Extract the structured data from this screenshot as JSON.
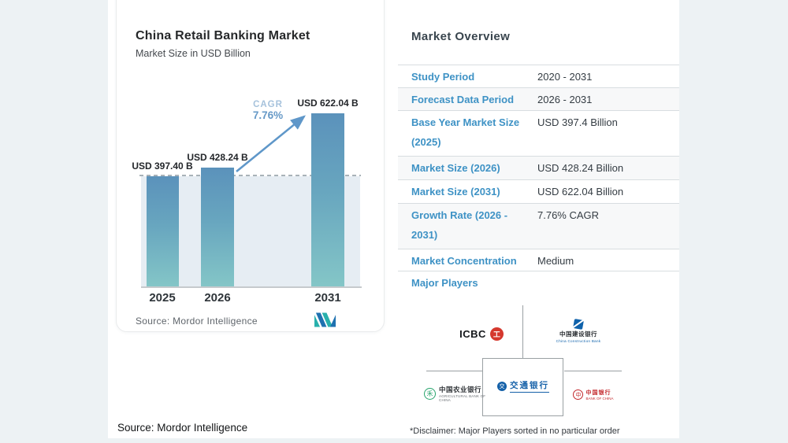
{
  "chart_card": {
    "title": "China Retail Banking Market",
    "subtitle": "Market Size in USD Billion",
    "source": "Source: Mordor Intelligence",
    "cagr_label": "CAGR",
    "cagr_value": "7.76%"
  },
  "chart_data": {
    "type": "bar",
    "title": "China Retail Banking Market",
    "subtitle": "Market Size in USD Billion",
    "unit": "USD Billion",
    "categories": [
      "2025",
      "2026",
      "2031"
    ],
    "values": [
      397.4,
      428.24,
      622.04
    ],
    "bar_labels": [
      "USD 397.40 B",
      "USD 428.24 B",
      "USD 622.04 B"
    ],
    "cagr": {
      "label": "CAGR",
      "value": "7.76%",
      "period": "2026 - 2031"
    },
    "baseline_value": 397.4,
    "ylim": [
      0,
      660
    ],
    "grid": false,
    "legend": "none",
    "bar_gradient": [
      "#5b92bb",
      "#84c6c7"
    ],
    "between_bars_fill": "#e6edf3",
    "dashed_reference_line": "at 2025 value level"
  },
  "overview": {
    "heading": "Market Overview",
    "label_color": "#3e92c5",
    "rows": [
      {
        "label": "Study Period",
        "value": "2020 - 2031"
      },
      {
        "label": "Forecast Data Period",
        "value": "2026 - 2031"
      },
      {
        "label": "Base Year Market Size (2025)",
        "value": "USD 397.4 Billion"
      },
      {
        "label": "Market Size (2026)",
        "value": "USD 428.24 Billion"
      },
      {
        "label": "Market Size (2031)",
        "value": "USD 622.04 Billion"
      },
      {
        "label": "Growth Rate (2026 - 2031)",
        "value": "7.76% CAGR"
      },
      {
        "label": "Market Concentration",
        "value": "Medium"
      }
    ],
    "major_players_label": "Major Players"
  },
  "major_players": {
    "disclaimer": "*Disclaimer: Major Players sorted in no particular order",
    "players": [
      {
        "name": "ICBC",
        "icon": "icbc-logo",
        "icon_char": "工",
        "color": "#d5382e"
      },
      {
        "name": "中国建设银行",
        "caption": "China Construction Bank",
        "icon": "ccb-logo",
        "color": "#0f62ab"
      },
      {
        "name": "中国农业银行",
        "caption": "AGRICULTURAL BANK OF CHINA",
        "icon": "abc-logo",
        "icon_char": "禾",
        "color": "#27a46c"
      },
      {
        "name": "交通银行",
        "icon": "bocom-logo",
        "icon_char": "交",
        "color": "#1460a8"
      },
      {
        "name": "中国银行",
        "caption": "BANK OF CHINA",
        "icon": "boc-logo",
        "icon_char": "中",
        "color": "#c3272b"
      }
    ]
  },
  "footer": {
    "source": "Source: Mordor Intelligence"
  },
  "colors": {
    "page_background": "#edf2f4",
    "content_background": "#ffffff",
    "accent_blue": "#3e92c5",
    "bar_top": "#5b92bb",
    "bar_bottom": "#84c6c7",
    "arrow_blue": "#5f97c9"
  }
}
